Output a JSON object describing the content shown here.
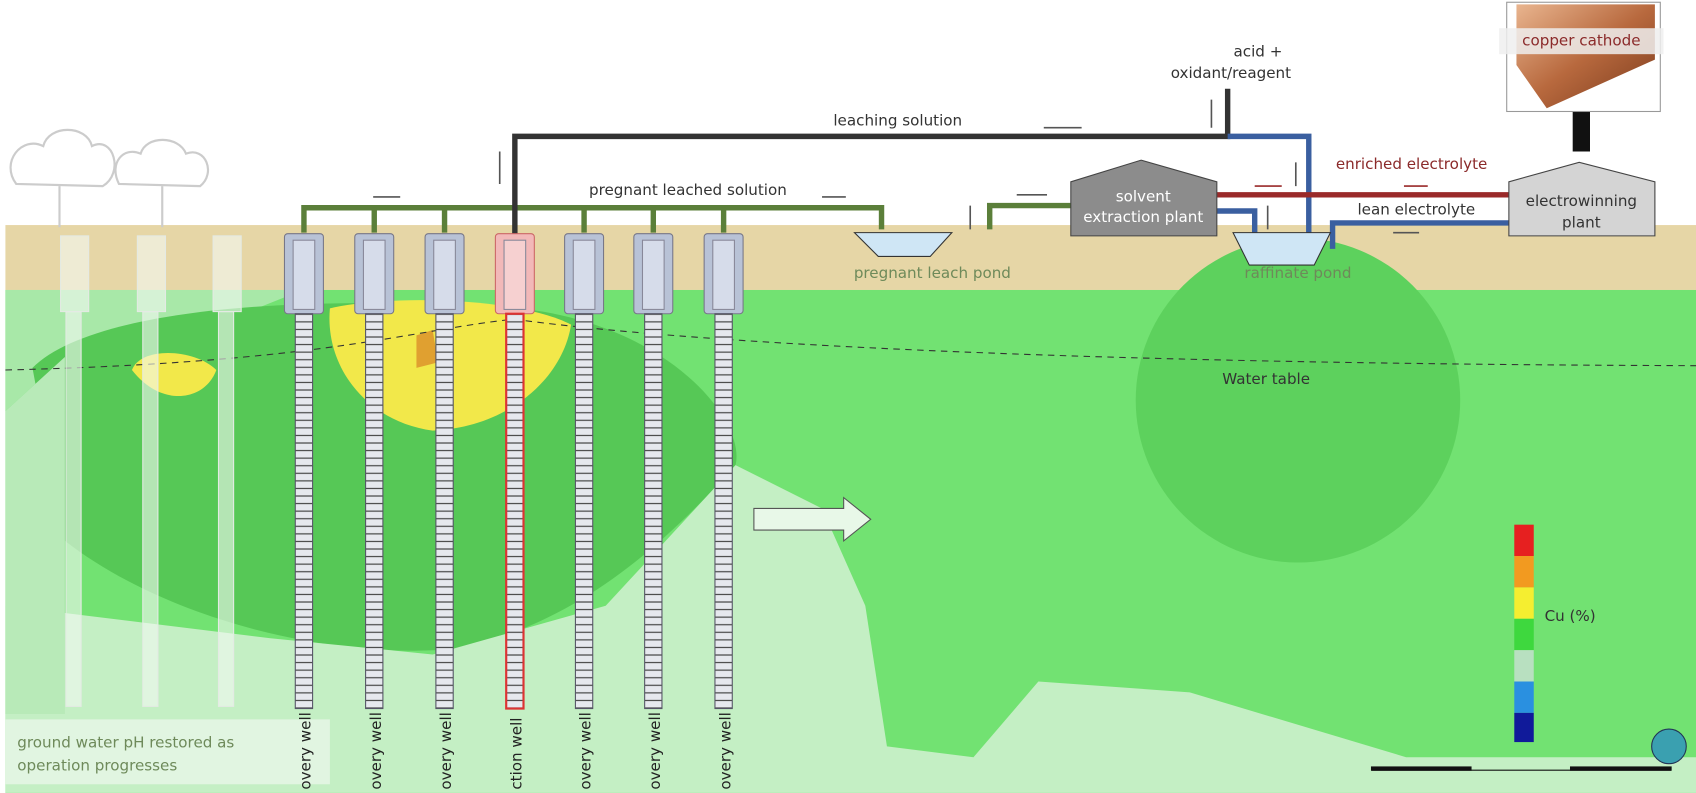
{
  "labels": {
    "acid_line1": "acid +",
    "acid_line2": "oxidant/reagent",
    "copper_cathode": "copper cathode",
    "leaching_solution": "leaching solution",
    "pregnant_leached_solution": "pregnant leached solution",
    "enriched_electrolyte": "enriched electrolyte",
    "lean_electrolyte": "lean electrolyte",
    "sx_line1": "solvent",
    "sx_line2": "extraction plant",
    "ew_line1": "electrowinning",
    "ew_line2": "plant",
    "pregnant_leach_pond": "pregnant leach pond",
    "raffinate_pond": "raffinate pond",
    "water_table": "Water table",
    "legend_title": "Cu (%)",
    "restored_line1": "ground water pH restored as",
    "restored_line2": "operation progresses"
  },
  "wells": [
    {
      "label": "overy well"
    },
    {
      "label": "overy well"
    },
    {
      "label": "overy well"
    },
    {
      "label": "ction well"
    },
    {
      "label": "overy well"
    },
    {
      "label": "overy well"
    },
    {
      "label": "overy well"
    }
  ]
}
